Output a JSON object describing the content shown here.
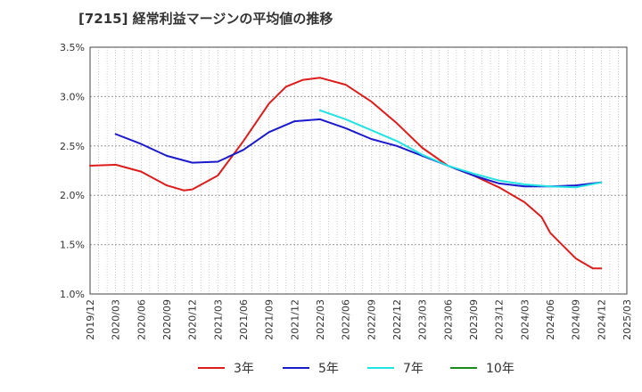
{
  "chart_data": {
    "type": "line",
    "title": "[7215]  経常利益マージンの平均値の推移",
    "xlabel": "",
    "ylabel": "",
    "x_ticks": [
      "2019/12",
      "2020/03",
      "2020/06",
      "2020/09",
      "2020/12",
      "2021/03",
      "2021/06",
      "2021/09",
      "2021/12",
      "2022/03",
      "2022/06",
      "2022/09",
      "2022/12",
      "2023/03",
      "2023/06",
      "2023/09",
      "2023/12",
      "2024/03",
      "2024/06",
      "2024/09",
      "2024/12",
      "2025/03"
    ],
    "y_ticks": [
      "1.0%",
      "1.5%",
      "2.0%",
      "2.5%",
      "3.0%",
      "3.5%"
    ],
    "ylim": [
      1.0,
      3.5
    ],
    "grid": true,
    "legend_position": "bottom",
    "series": [
      {
        "name": "3年",
        "color": "#dd1c1c",
        "x": [
          "2019/12",
          "2020/03",
          "2020/06",
          "2020/09",
          "2020/11",
          "2020/12",
          "2021/03",
          "2021/06",
          "2021/09",
          "2021/11",
          "2022/01",
          "2022/03",
          "2022/06",
          "2022/09",
          "2022/12",
          "2023/03",
          "2023/06",
          "2023/09",
          "2023/12",
          "2024/03",
          "2024/05",
          "2024/06",
          "2024/09",
          "2024/11",
          "2024/12"
        ],
        "values": [
          2.3,
          2.31,
          2.24,
          2.1,
          2.05,
          2.06,
          2.2,
          2.55,
          2.93,
          3.1,
          3.17,
          3.19,
          3.12,
          2.95,
          2.73,
          2.48,
          2.3,
          2.2,
          2.08,
          1.93,
          1.78,
          1.62,
          1.36,
          1.26,
          1.26
        ]
      },
      {
        "name": "5年",
        "color": "#1a1acc",
        "x": [
          "2020/03",
          "2020/06",
          "2020/09",
          "2020/12",
          "2021/03",
          "2021/06",
          "2021/09",
          "2021/12",
          "2022/03",
          "2022/06",
          "2022/09",
          "2022/12",
          "2023/03",
          "2023/06",
          "2023/09",
          "2023/12",
          "2024/03",
          "2024/06",
          "2024/09",
          "2024/12"
        ],
        "values": [
          2.62,
          2.52,
          2.4,
          2.33,
          2.34,
          2.46,
          2.64,
          2.75,
          2.77,
          2.68,
          2.57,
          2.5,
          2.4,
          2.3,
          2.2,
          2.12,
          2.09,
          2.09,
          2.1,
          2.13
        ]
      },
      {
        "name": "7年",
        "color": "#22e3e3",
        "x": [
          "2022/03",
          "2022/06",
          "2022/09",
          "2022/12",
          "2023/03",
          "2023/06",
          "2023/09",
          "2023/12",
          "2024/03",
          "2024/06",
          "2024/09",
          "2024/12"
        ],
        "values": [
          2.86,
          2.77,
          2.66,
          2.55,
          2.41,
          2.3,
          2.22,
          2.15,
          2.11,
          2.09,
          2.08,
          2.13
        ]
      },
      {
        "name": "10年",
        "color": "#1a8a1a",
        "x": [],
        "values": []
      }
    ]
  }
}
